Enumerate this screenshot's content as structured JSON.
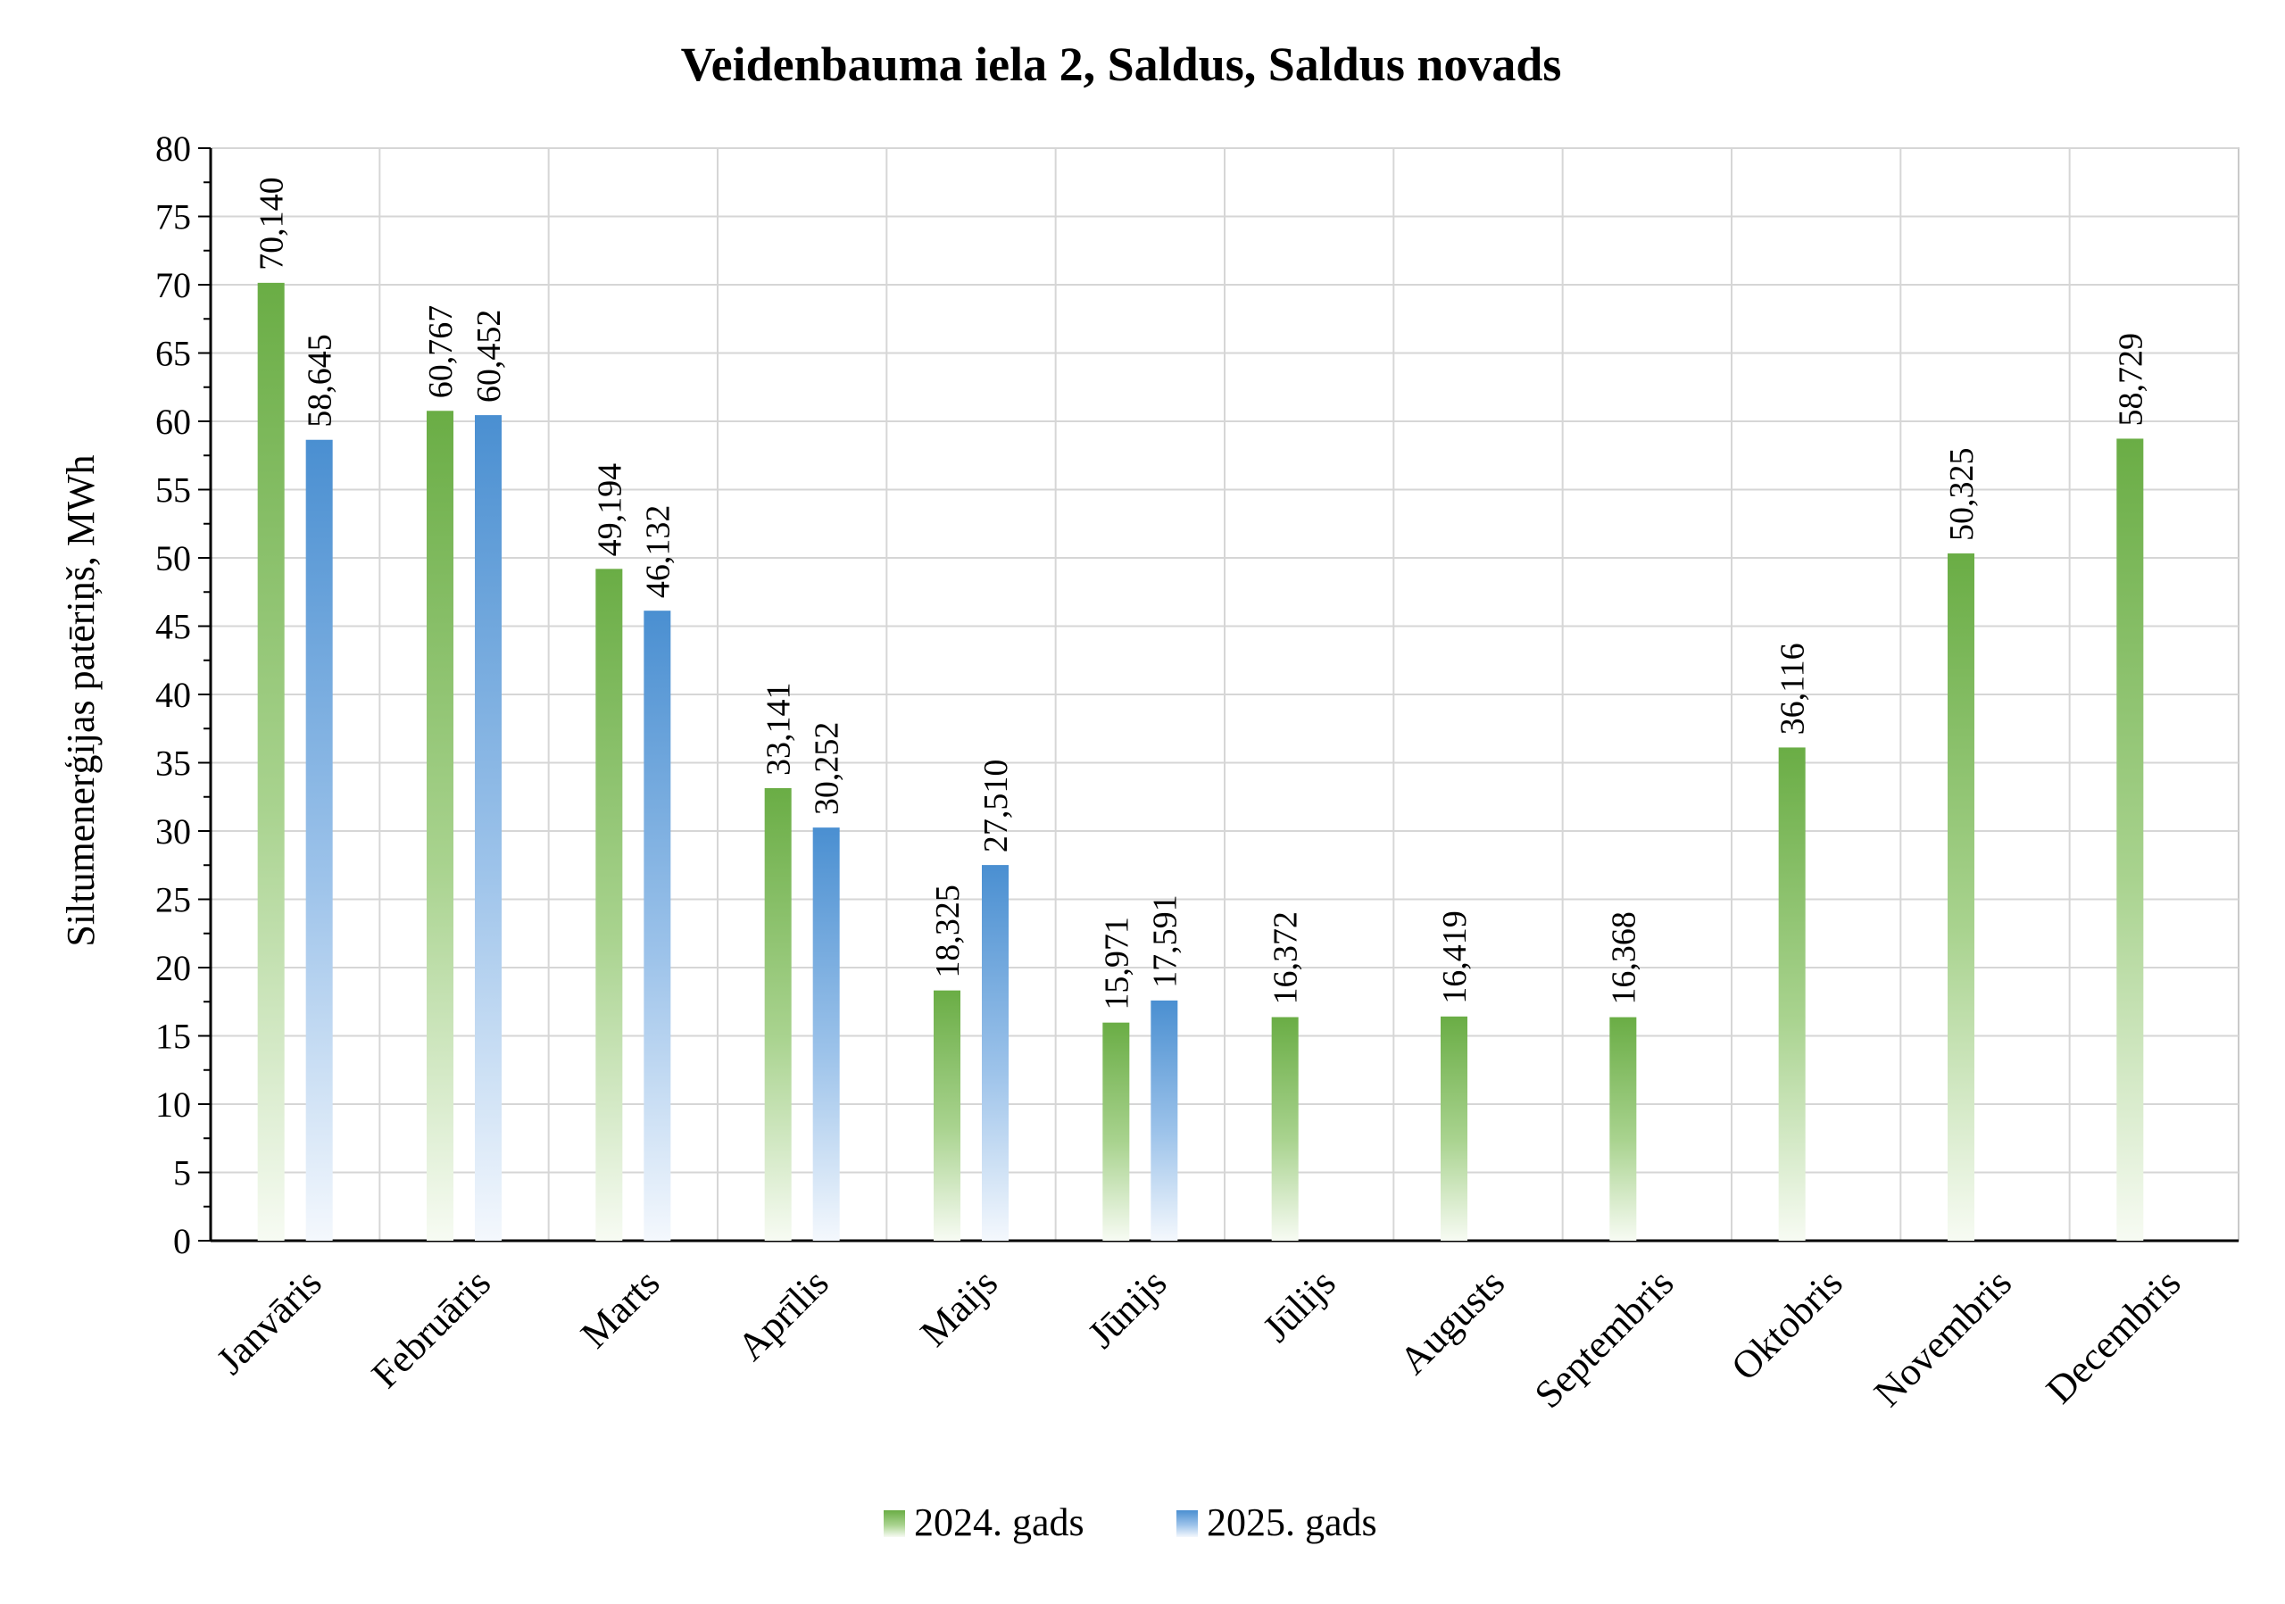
{
  "chart_data": {
    "type": "bar",
    "title": "Veidenbauma iela 2, Saldus, Saldus novads",
    "xlabel": "",
    "ylabel": "Siltumenerģijas patēriņš, MWh",
    "ylim": [
      0,
      80
    ],
    "ystep": 5,
    "grid": true,
    "legend_position": "bottom",
    "categories": [
      "Janvāris",
      "Februāris",
      "Marts",
      "Aprīlis",
      "Maijs",
      "Jūnijs",
      "Jūlijs",
      "Augusts",
      "Septembris",
      "Oktobris",
      "Novembris",
      "Decembris"
    ],
    "series": [
      {
        "name": "2024. gads",
        "color": "#6aad45",
        "values": [
          70.14,
          60.767,
          49.194,
          33.141,
          18.325,
          15.971,
          16.372,
          16.419,
          16.368,
          36.116,
          50.325,
          58.729
        ],
        "labels": [
          "70,140",
          "60,767",
          "49,194",
          "33,141",
          "18,325",
          "15,971",
          "16,372",
          "16,419",
          "16,368",
          "36,116",
          "50,325",
          "58,729"
        ]
      },
      {
        "name": "2025. gads",
        "color": "#4a8fd1",
        "values": [
          58.645,
          60.452,
          46.132,
          30.252,
          27.51,
          17.591,
          null,
          null,
          null,
          null,
          null,
          null
        ],
        "labels": [
          "58,645",
          "60,452",
          "46,132",
          "30,252",
          "27,510",
          "17,591",
          null,
          null,
          null,
          null,
          null,
          null
        ]
      }
    ]
  }
}
